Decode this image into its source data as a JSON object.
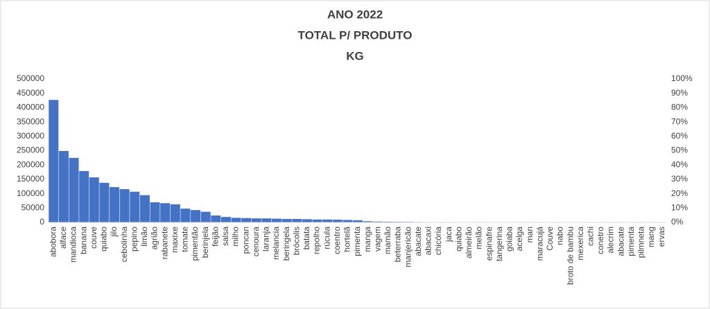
{
  "chart_data": {
    "type": "bar",
    "title": [
      "ANO 2022",
      "TOTAL P/ PRODUTO",
      "KG"
    ],
    "categories": [
      "abobora",
      "alface",
      "mandioca",
      "banana",
      "couve",
      "quiabo",
      "jilo",
      "cebolinha",
      "pepino",
      "limão",
      "agrião",
      "rabanete",
      "maxixe",
      "tomate",
      "pimentão",
      "berinjela",
      "feijão",
      "salsa",
      "milho",
      "poncan",
      "cenoura",
      "laranja",
      "melancia",
      "beringela",
      "brócolis",
      "batata",
      "repolho",
      "rúcula",
      "coentro",
      "hortelã",
      "pimenta",
      "manga",
      "vagem",
      "mamão",
      "beterraba",
      "manjericão",
      "abacate",
      "abacaxi",
      "chicória",
      "jaca",
      "quiabo",
      "almeirão",
      "melão",
      "espinafre",
      "tangerina",
      "goiaba",
      "acelga",
      "man",
      "maracujá",
      "Couve",
      "nabo",
      "broto de bambu",
      "mexerica",
      "cachi",
      "conetro",
      "alecrim",
      "abacate",
      "pimenta",
      "pilmneta",
      "mang",
      "ervas"
    ],
    "values": [
      427000,
      249000,
      225000,
      179000,
      157000,
      138000,
      123000,
      116000,
      107000,
      95000,
      70000,
      67000,
      63000,
      48000,
      43000,
      37000,
      24000,
      19000,
      16000,
      15000,
      14000,
      14000,
      13000,
      12000,
      12000,
      11000,
      10000,
      10000,
      9500,
      8500,
      7500,
      4000,
      3000,
      2500,
      2200,
      2000,
      1500,
      800,
      600,
      500,
      450,
      400,
      350,
      300,
      280,
      250,
      220,
      200,
      180,
      160,
      140,
      120,
      100,
      90,
      80,
      70,
      60,
      50,
      40,
      30,
      20
    ],
    "color": "#4472c4",
    "ylim": [
      0,
      500000
    ],
    "yticks": [
      0,
      50000,
      100000,
      150000,
      200000,
      250000,
      300000,
      350000,
      400000,
      450000,
      500000
    ],
    "y2lim": [
      0,
      100
    ],
    "y2ticks": [
      {
        "value": 0,
        "label": "0%"
      },
      {
        "value": 10,
        "label": "10%"
      },
      {
        "value": 20,
        "label": "20%"
      },
      {
        "value": 30,
        "label": "30%"
      },
      {
        "value": 40,
        "label": "40%"
      },
      {
        "value": 50,
        "label": "50%"
      },
      {
        "value": 60,
        "label": "60%"
      },
      {
        "value": 70,
        "label": "70%"
      },
      {
        "value": 80,
        "label": "80%"
      },
      {
        "value": 90,
        "label": "90%"
      },
      {
        "value": 100,
        "label": "100%"
      }
    ],
    "grid": false
  }
}
